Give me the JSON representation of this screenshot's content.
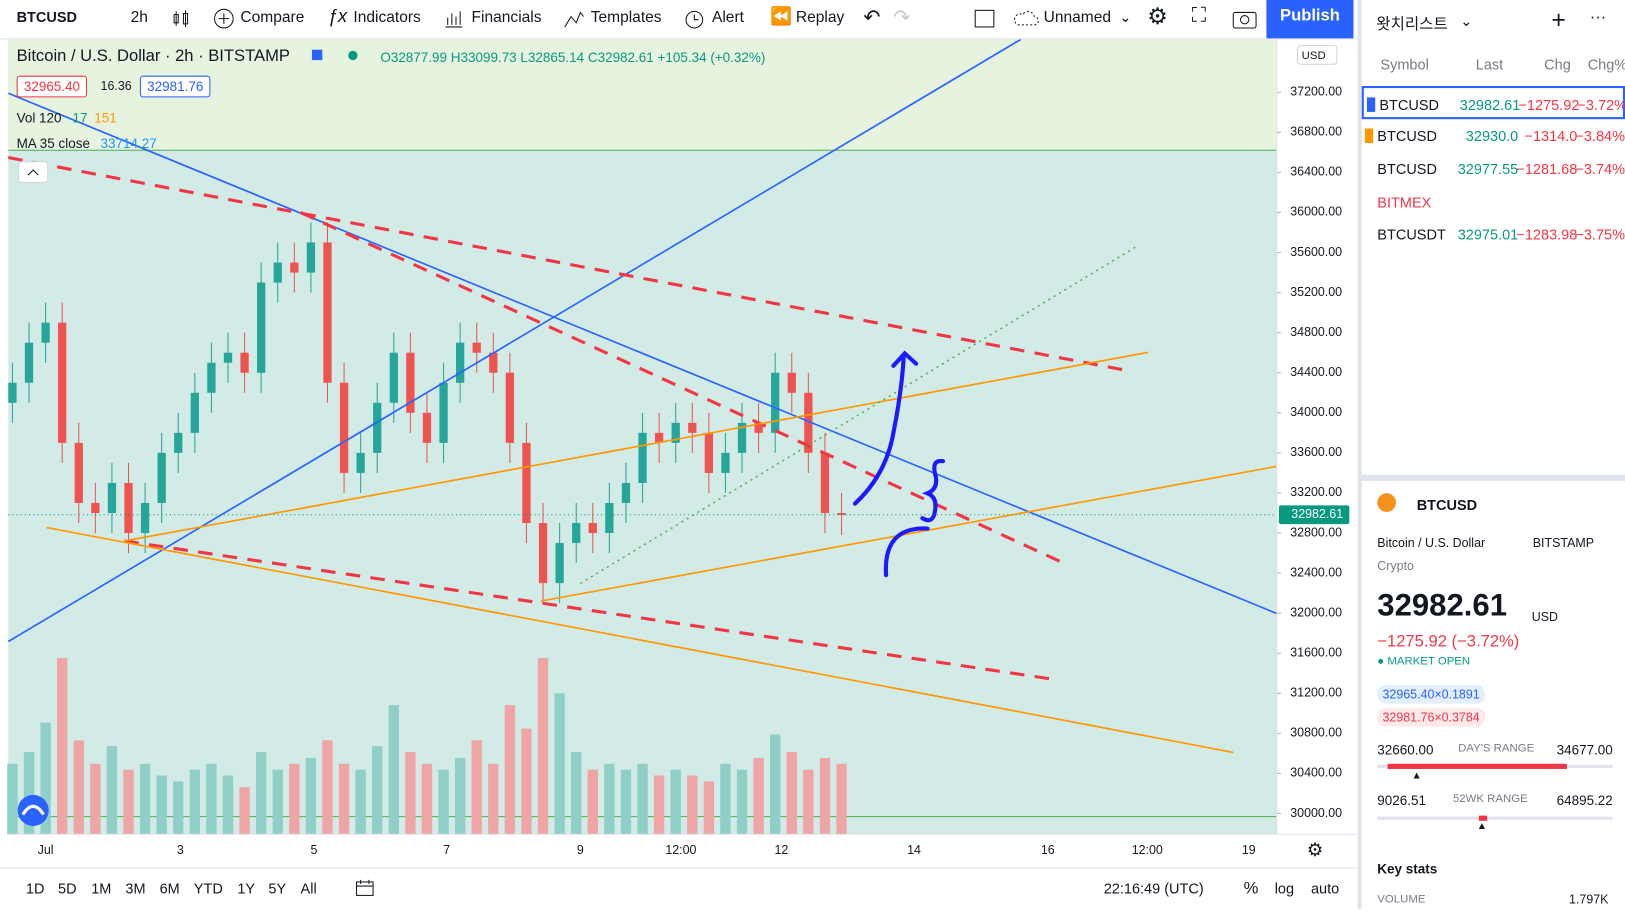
{
  "toolbar": {
    "symbol": "BTCUSD",
    "interval": "2h",
    "buttons": [
      "Compare",
      "Indicators",
      "Financials",
      "Templates",
      "Alert",
      "Replay"
    ],
    "layout_name": "Unnamed",
    "publish": "Publish"
  },
  "legend": {
    "title": "Bitcoin / U.S. Dollar · 2h · BITSTAMP",
    "ohlc": "O32877.99 H33099.73 L32865.14 C32982.61 +105.34 (+0.32%)",
    "bid": "32965.40",
    "spread": "16.36",
    "ask": "32981.76",
    "vol": "Vol 120",
    "vol_a": "17",
    "vol_b": "151",
    "ma": "MA 35 close",
    "ma_value": "33714.27"
  },
  "chart": {
    "currency": "USD",
    "last_price": {
      "value": 32982.61,
      "label": "32982.61"
    },
    "yticks": [
      {
        "value": 30000,
        "label": "30000.00"
      },
      {
        "value": 30400,
        "label": "30400.00"
      },
      {
        "value": 30800,
        "label": "30800.00"
      },
      {
        "value": 31200,
        "label": "31200.00"
      },
      {
        "value": 31600,
        "label": "31600.00"
      },
      {
        "value": 32000,
        "label": "32000.00"
      },
      {
        "value": 32400,
        "label": "32400.00"
      },
      {
        "value": 32800,
        "label": "32800.00"
      },
      {
        "value": 33200,
        "label": "33200.00"
      },
      {
        "value": 33600,
        "label": "33600.00"
      },
      {
        "value": 34000,
        "label": "34000.00"
      },
      {
        "value": 34400,
        "label": "34400.00"
      },
      {
        "value": 34800,
        "label": "34800.00"
      },
      {
        "value": 35200,
        "label": "35200.00"
      },
      {
        "value": 35600,
        "label": "35600.00"
      },
      {
        "value": 36000,
        "label": "36000.00"
      },
      {
        "value": 36400,
        "label": "36400.00"
      },
      {
        "value": 36800,
        "label": "36800.00"
      },
      {
        "value": 37200,
        "label": "37200.00"
      }
    ],
    "xlabels": [
      "Jul",
      "3",
      "5",
      "7",
      "9",
      "12:00",
      "12",
      "14",
      "16",
      "12:00",
      "19"
    ],
    "open": [
      34100,
      34300,
      34700,
      34900,
      33700,
      33100,
      33000,
      33300,
      32800,
      33100,
      33600,
      33800,
      34200,
      34500,
      34600,
      34400,
      35300,
      35500,
      35400,
      35700,
      34300,
      33400,
      33600,
      34100,
      34600,
      34000,
      33700,
      34300,
      34700,
      34600,
      34400,
      33700,
      32900,
      32300,
      32700,
      32900,
      32800,
      33100,
      33300,
      33800,
      33700,
      33900,
      33800,
      33400,
      33600,
      33900,
      33800,
      34400,
      34200,
      33600,
      33000
    ],
    "high": [
      34500,
      34900,
      35100,
      35100,
      33900,
      33300,
      33500,
      33500,
      33300,
      33800,
      34000,
      34400,
      34700,
      34800,
      34800,
      35500,
      35700,
      35700,
      35900,
      35900,
      34500,
      33800,
      34300,
      34800,
      34800,
      34200,
      34500,
      34900,
      34900,
      34800,
      34600,
      33900,
      33100,
      32900,
      33100,
      33100,
      33300,
      33500,
      34000,
      34000,
      34100,
      34100,
      34000,
      33800,
      34100,
      34100,
      34600,
      34600,
      34400,
      33800,
      33200
    ],
    "low": [
      33900,
      34100,
      34500,
      33500,
      32900,
      32800,
      32800,
      32600,
      32600,
      32900,
      33400,
      33600,
      34000,
      34300,
      34200,
      34200,
      35100,
      35200,
      35200,
      34100,
      33200,
      33200,
      33400,
      33900,
      33800,
      33500,
      33500,
      34100,
      34400,
      34200,
      33500,
      32700,
      32100,
      32100,
      32500,
      32600,
      32600,
      32900,
      33100,
      33500,
      33500,
      33600,
      33200,
      33200,
      33400,
      33600,
      33600,
      34000,
      33400,
      32800,
      32780
    ],
    "close": [
      34300,
      34700,
      34900,
      33700,
      33100,
      33000,
      33300,
      32800,
      33100,
      33600,
      33800,
      34200,
      34500,
      34600,
      34400,
      35300,
      35500,
      35400,
      35700,
      34300,
      33400,
      33600,
      34100,
      34600,
      34000,
      33700,
      34300,
      34700,
      34600,
      34400,
      33700,
      32900,
      32300,
      32700,
      32900,
      32800,
      33100,
      33300,
      33800,
      33700,
      33900,
      33800,
      33400,
      33600,
      33900,
      33800,
      34400,
      34200,
      33600,
      33000,
      32980
    ],
    "volume": [
      60,
      70,
      95,
      150,
      80,
      60,
      75,
      55,
      60,
      50,
      45,
      55,
      60,
      50,
      40,
      70,
      55,
      60,
      65,
      80,
      60,
      55,
      75,
      110,
      70,
      60,
      55,
      65,
      80,
      60,
      110,
      90,
      150,
      120,
      70,
      55,
      60,
      55,
      60,
      50,
      55,
      50,
      45,
      60,
      55,
      65,
      85,
      70,
      55,
      65,
      60
    ]
  },
  "bottom": {
    "ranges": [
      "1D",
      "5D",
      "1M",
      "3M",
      "6M",
      "YTD",
      "1Y",
      "5Y",
      "All"
    ],
    "time": "22:16:49 (UTC)",
    "percent": "%",
    "log": "log",
    "auto": "auto"
  },
  "watchlist": {
    "title": "왓치리스트",
    "columns": [
      "Symbol",
      "Last",
      "Chg",
      "Chg%"
    ],
    "rows": [
      [
        "BTCUSD",
        "32982.61",
        "−1275.92",
        "−3.72%"
      ],
      [
        "BTCUSD",
        "32930.0",
        "−1314.0",
        "−3.84%"
      ],
      [
        "BTCUSD",
        "32977.55",
        "−1281.68",
        "−3.74%"
      ]
    ],
    "section": "BITMEX",
    "section_rows": [
      [
        "BTCUSDT",
        "32975.01",
        "−1283.98",
        "−3.75%"
      ]
    ]
  },
  "details": {
    "symbol": "BTCUSD",
    "name": "Bitcoin / U.S. Dollar",
    "exchange": "BITSTAMP",
    "kind": "Crypto",
    "price": "32982.61",
    "currency": "USD",
    "change": "−1275.92 (−3.72%)",
    "status": "MARKET OPEN",
    "bid": "32965.40×0.1891",
    "ask": "32981.76×0.3784",
    "day_low": "32660.00",
    "day_label": "DAY'S RANGE",
    "day_high": "34677.00",
    "wk_low": "9026.51",
    "wk_label": "52WK RANGE",
    "wk_high": "64895.22",
    "key_stats": "Key stats",
    "volume_label": "VOLUME",
    "volume": "1.797K"
  }
}
